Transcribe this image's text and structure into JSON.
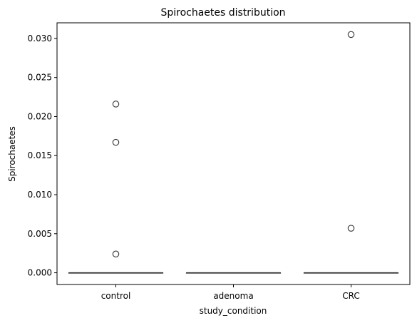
{
  "chart_data": {
    "type": "box",
    "title": "Spirochaetes distribution",
    "xlabel": "study_condition",
    "ylabel": "Spirochaetes",
    "categories": [
      "control",
      "adenoma",
      "CRC"
    ],
    "ylim": [
      -0.0015,
      0.032
    ],
    "yticks": [
      0.0,
      0.005,
      0.01,
      0.015,
      0.02,
      0.025,
      0.03
    ],
    "ytick_labels": [
      "0.000",
      "0.005",
      "0.010",
      "0.015",
      "0.020",
      "0.025",
      "0.030"
    ],
    "grid": false,
    "box_color": "#ffffff",
    "edge_color": "#333333",
    "boxes": [
      {
        "category": "control",
        "q1": 0.0,
        "median": 0.0,
        "q3": 0.0,
        "whisker_low": 0.0,
        "whisker_high": 0.0,
        "outliers": [
          0.0216,
          0.0167,
          0.0024
        ]
      },
      {
        "category": "adenoma",
        "q1": 0.0,
        "median": 0.0,
        "q3": 0.0,
        "whisker_low": 0.0,
        "whisker_high": 0.0,
        "outliers": []
      },
      {
        "category": "CRC",
        "q1": 0.0,
        "median": 0.0,
        "q3": 0.0,
        "whisker_low": 0.0,
        "whisker_high": 0.0,
        "outliers": [
          0.0305,
          0.0057
        ]
      }
    ]
  }
}
